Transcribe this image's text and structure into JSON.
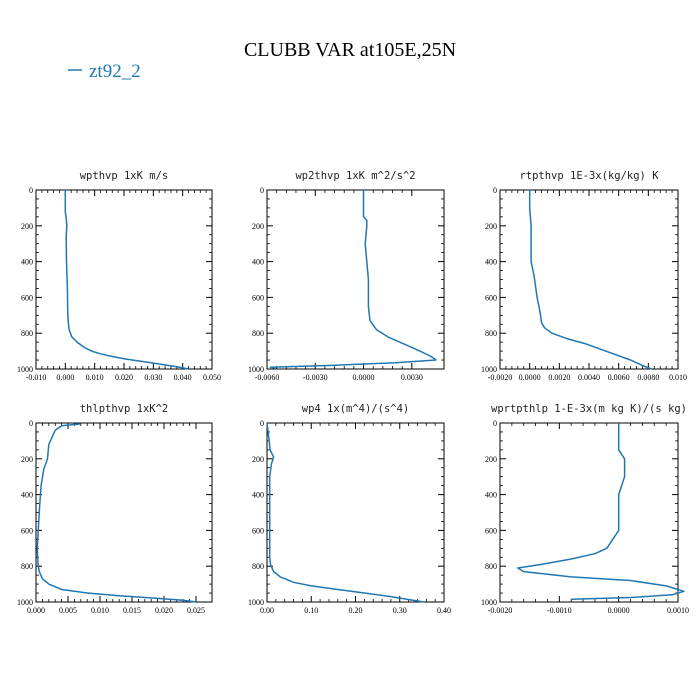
{
  "title": "CLUBB VAR at105E,25N",
  "legend": {
    "label": "zt92_2",
    "color": "#1f77b4"
  },
  "line_color": "#1f77b4",
  "chart_data": [
    {
      "type": "line",
      "title": "wpthvp  1xK m/s",
      "xlim": [
        -0.01,
        0.05
      ],
      "ylim": [
        0,
        1000
      ],
      "y_inverted": true,
      "xticks": [
        -0.01,
        0.0,
        0.01,
        0.02,
        0.03,
        0.04,
        0.05
      ],
      "xtick_labels": [
        "-0.010",
        "0.000",
        "0.010",
        "0.020",
        "0.030",
        "0.040",
        "0.050"
      ],
      "yticks": [
        0,
        200,
        400,
        600,
        800,
        1000
      ],
      "ytick_labels": [
        "0",
        "200",
        "400",
        "600",
        "800",
        "1000"
      ],
      "series": [
        {
          "name": "zt92_2",
          "x": [
            0.0,
            0.0,
            0.0003,
            0.0005,
            0.0003,
            0.0004,
            0.0007,
            0.0008,
            0.001,
            0.0013,
            0.0022,
            0.004,
            0.0065,
            0.009,
            0.012,
            0.016,
            0.021,
            0.027,
            0.033,
            0.039,
            0.042
          ],
          "y": [
            0,
            120,
            160,
            200,
            260,
            400,
            550,
            680,
            740,
            780,
            820,
            850,
            880,
            900,
            915,
            930,
            945,
            960,
            975,
            990,
            1000
          ]
        }
      ]
    },
    {
      "type": "line",
      "title": "wp2thvp  1xK m^2/s^2",
      "xlim": [
        -0.006,
        0.005
      ],
      "ylim": [
        0,
        1000
      ],
      "y_inverted": true,
      "xticks": [
        -0.006,
        -0.003,
        0.0,
        0.003
      ],
      "xtick_labels": [
        "-0.0060",
        "-0.0030",
        "0.0000",
        "0.0030"
      ],
      "yticks": [
        0,
        200,
        400,
        600,
        800,
        1000
      ],
      "ytick_labels": [
        "0",
        "200",
        "400",
        "600",
        "800",
        "1000"
      ],
      "series": [
        {
          "name": "zt92_2",
          "x": [
            0.0,
            0.0,
            0.0002,
            0.0002,
            0.0001,
            0.0003,
            0.0003,
            0.0004,
            0.0008,
            0.0015,
            0.0025,
            0.0035,
            0.0042,
            0.0045,
            0.002,
            -0.002,
            -0.0058,
            -0.0055
          ],
          "y": [
            0,
            150,
            170,
            200,
            300,
            500,
            650,
            730,
            780,
            820,
            860,
            900,
            930,
            950,
            965,
            980,
            990,
            995
          ]
        }
      ]
    },
    {
      "type": "line",
      "title": "rtpthvp  1E-3x(kg/kg) K",
      "xlim": [
        -0.002,
        0.01
      ],
      "ylim": [
        0,
        1000
      ],
      "y_inverted": true,
      "xticks": [
        -0.002,
        0.0,
        0.002,
        0.004,
        0.006,
        0.008,
        0.01
      ],
      "xtick_labels": [
        "-0.0020",
        "0.0000",
        "0.0020",
        "0.0040",
        "0.0060",
        "0.0080",
        "0.010"
      ],
      "yticks": [
        0,
        200,
        400,
        600,
        800,
        1000
      ],
      "ytick_labels": [
        "0",
        "200",
        "400",
        "600",
        "800",
        "1000"
      ],
      "series": [
        {
          "name": "zt92_2",
          "x": [
            0.0,
            0.0,
            0.0001,
            0.0001,
            0.0003,
            0.0005,
            0.0007,
            0.0008,
            0.001,
            0.0015,
            0.0025,
            0.0038,
            0.0048,
            0.0058,
            0.0068,
            0.0076,
            0.0082
          ],
          "y": [
            0,
            100,
            200,
            400,
            480,
            600,
            680,
            740,
            770,
            800,
            830,
            860,
            890,
            920,
            950,
            980,
            1000
          ]
        }
      ]
    },
    {
      "type": "line",
      "title": "thlpthvp  1xK^2",
      "xlim": [
        0.0,
        0.0275
      ],
      "ylim": [
        0,
        1000
      ],
      "y_inverted": true,
      "xticks": [
        0.0,
        0.005,
        0.01,
        0.015,
        0.02,
        0.025
      ],
      "xtick_labels": [
        "0.000",
        "0.005",
        "0.010",
        "0.015",
        "0.020",
        "0.025"
      ],
      "yticks": [
        0,
        200,
        400,
        600,
        800,
        1000
      ],
      "ytick_labels": [
        "0",
        "200",
        "400",
        "600",
        "800",
        "1000"
      ],
      "series": [
        {
          "name": "zt92_2",
          "x": [
            0.007,
            0.004,
            0.003,
            0.0025,
            0.002,
            0.0018,
            0.0012,
            0.0008,
            0.0005,
            0.0002,
            0.0003,
            0.0005,
            0.001,
            0.002,
            0.004,
            0.008,
            0.013,
            0.019,
            0.023,
            0.025
          ],
          "y": [
            5,
            15,
            40,
            80,
            120,
            200,
            260,
            350,
            500,
            700,
            780,
            830,
            870,
            900,
            930,
            950,
            965,
            980,
            990,
            1000
          ]
        }
      ]
    },
    {
      "type": "line",
      "title": "wp4  1x(m^4)/(s^4)",
      "xlim": [
        0.0,
        0.4
      ],
      "ylim": [
        0,
        1000
      ],
      "y_inverted": true,
      "xticks": [
        0.0,
        0.1,
        0.2,
        0.3,
        0.4
      ],
      "xtick_labels": [
        "0.00",
        "0.10",
        "0.20",
        "0.30",
        "0.40"
      ],
      "yticks": [
        0,
        200,
        400,
        600,
        800,
        1000
      ],
      "ytick_labels": [
        "0",
        "200",
        "400",
        "600",
        "800",
        "1000"
      ],
      "series": [
        {
          "name": "zt92_2",
          "x": [
            0.0,
            0.005,
            0.007,
            0.015,
            0.01,
            0.006,
            0.006,
            0.006,
            0.008,
            0.015,
            0.03,
            0.06,
            0.1,
            0.16,
            0.22,
            0.28,
            0.33,
            0.355
          ],
          "y": [
            0,
            100,
            150,
            190,
            230,
            300,
            500,
            750,
            790,
            830,
            860,
            890,
            910,
            930,
            950,
            970,
            990,
            1000
          ]
        }
      ]
    },
    {
      "type": "line",
      "title": "wprtpthlp  1-E-3x(m kg K)/(s kg)",
      "xlim": [
        -0.002,
        0.001
      ],
      "ylim": [
        0,
        1000
      ],
      "y_inverted": true,
      "xticks": [
        -0.002,
        -0.001,
        0.0,
        0.001
      ],
      "xtick_labels": [
        "-0.0020",
        "-0.0010",
        "0.0000",
        "0.0010"
      ],
      "yticks": [
        0,
        200,
        400,
        600,
        800,
        1000
      ],
      "ytick_labels": [
        "0",
        "200",
        "400",
        "600",
        "800",
        "1000"
      ],
      "series": [
        {
          "name": "zt92_2",
          "x": [
            0.0,
            0.0,
            0.0001,
            0.0001,
            0.0,
            0.0,
            -0.0001,
            -0.0002,
            -0.0004,
            -0.0008,
            -0.0013,
            -0.0017,
            -0.0016,
            -0.0008,
            0.0002,
            0.0008,
            0.0011,
            0.0009,
            0.0002,
            -0.0008
          ],
          "y": [
            0,
            150,
            200,
            300,
            400,
            600,
            650,
            700,
            730,
            760,
            790,
            810,
            830,
            860,
            880,
            910,
            940,
            960,
            975,
            985
          ]
        }
      ]
    }
  ]
}
